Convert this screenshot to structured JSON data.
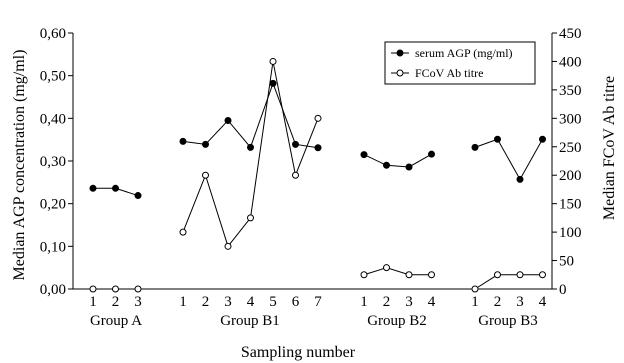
{
  "chart_data": {
    "type": "line",
    "xlabel": "Sampling number",
    "ylabel_left": "Median AGP concentration (mg/ml)",
    "ylabel_right": "Median FCoV Ab titre",
    "ylim_left": [
      0,
      0.6
    ],
    "ylim_right": [
      0,
      450
    ],
    "yticks_left": [
      "0,00",
      "0,10",
      "0,20",
      "0,30",
      "0,40",
      "0,50",
      "0,60"
    ],
    "yticks_right": [
      "0",
      "50",
      "100",
      "150",
      "200",
      "250",
      "300",
      "350",
      "400",
      "450"
    ],
    "grid": false,
    "legend_position": "top-right",
    "groups": [
      {
        "name": "Group A",
        "samples": [
          "1",
          "2",
          "3"
        ]
      },
      {
        "name": "Group B1",
        "samples": [
          "1",
          "2",
          "3",
          "4",
          "5",
          "6",
          "7"
        ]
      },
      {
        "name": "Group B2",
        "samples": [
          "1",
          "2",
          "3",
          "4"
        ]
      },
      {
        "name": "Group B3",
        "samples": [
          "1",
          "2",
          "3",
          "4"
        ]
      }
    ],
    "series": [
      {
        "name": "serum AGP (mg/ml)",
        "axis": "left",
        "marker": "filled-circle",
        "values_by_group": [
          [
            0.236,
            0.236,
            0.219
          ],
          [
            0.346,
            0.339,
            0.395,
            0.332,
            0.482,
            0.339,
            0.331
          ],
          [
            0.315,
            0.29,
            0.286,
            0.316
          ],
          [
            0.332,
            0.351,
            0.257,
            0.351
          ]
        ]
      },
      {
        "name": "FCoV Ab titre",
        "axis": "right",
        "marker": "open-circle",
        "values_by_group": [
          [
            0,
            0,
            0
          ],
          [
            100,
            200,
            75,
            125,
            400,
            200,
            300
          ],
          [
            25,
            37.5,
            25,
            25
          ],
          [
            0,
            25,
            25,
            25
          ]
        ]
      }
    ]
  }
}
